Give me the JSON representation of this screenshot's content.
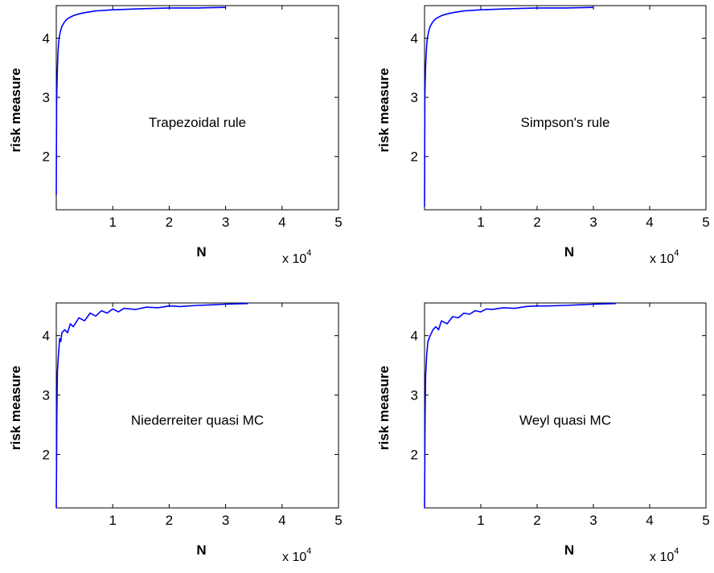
{
  "chart_data": [
    {
      "type": "line",
      "annotation": "Trapezoidal rule",
      "xlabel": "N",
      "ylabel": "risk measure",
      "x_multiplier": "x 10",
      "x_multiplier_exp": "4",
      "xlim": [
        0,
        5
      ],
      "ylim": [
        1.1,
        4.55
      ],
      "xticks": [
        "1",
        "2",
        "3",
        "4",
        "5"
      ],
      "yticks": [
        "2",
        "3",
        "4"
      ],
      "series": [
        {
          "color": "#0000ff",
          "x": [
            0,
            0.005,
            0.01,
            0.02,
            0.03,
            0.04,
            0.05,
            0.07,
            0.1,
            0.15,
            0.2,
            0.3,
            0.4,
            0.5,
            0.7,
            1.0,
            1.3,
            1.6,
            2.0,
            2.5,
            3.0
          ],
          "y": [
            1.35,
            2.9,
            3.1,
            3.5,
            3.75,
            3.9,
            4.0,
            4.1,
            4.2,
            4.28,
            4.33,
            4.38,
            4.41,
            4.43,
            4.46,
            4.48,
            4.49,
            4.5,
            4.51,
            4.51,
            4.52
          ]
        }
      ]
    },
    {
      "type": "line",
      "annotation": "Simpson's rule",
      "xlabel": "N",
      "ylabel": "risk measure",
      "x_multiplier": "x 10",
      "x_multiplier_exp": "4",
      "xlim": [
        0,
        5
      ],
      "ylim": [
        1.1,
        4.55
      ],
      "xticks": [
        "1",
        "2",
        "3",
        "4",
        "5"
      ],
      "yticks": [
        "2",
        "3",
        "4"
      ],
      "series": [
        {
          "color": "#0000ff",
          "x": [
            0,
            0.005,
            0.01,
            0.02,
            0.03,
            0.04,
            0.05,
            0.07,
            0.1,
            0.15,
            0.2,
            0.3,
            0.4,
            0.5,
            0.7,
            1.0,
            1.3,
            1.6,
            2.0,
            2.5,
            3.0
          ],
          "y": [
            1.15,
            2.95,
            3.2,
            3.55,
            3.75,
            3.9,
            4.0,
            4.1,
            4.2,
            4.28,
            4.33,
            4.38,
            4.41,
            4.43,
            4.46,
            4.48,
            4.49,
            4.5,
            4.51,
            4.51,
            4.52
          ]
        }
      ]
    },
    {
      "type": "line",
      "annotation": "Niederreiter quasi MC",
      "xlabel": "N",
      "ylabel": "risk measure",
      "x_multiplier": "x 10",
      "x_multiplier_exp": "4",
      "xlim": [
        0,
        5
      ],
      "ylim": [
        1.1,
        4.55
      ],
      "xticks": [
        "1",
        "2",
        "3",
        "4",
        "5"
      ],
      "yticks": [
        "2",
        "3",
        "4"
      ],
      "series": [
        {
          "color": "#0000ff",
          "x": [
            0,
            0.01,
            0.02,
            0.04,
            0.06,
            0.08,
            0.1,
            0.15,
            0.2,
            0.25,
            0.3,
            0.4,
            0.5,
            0.6,
            0.7,
            0.8,
            0.9,
            1.0,
            1.1,
            1.2,
            1.4,
            1.6,
            1.8,
            2.0,
            2.2,
            2.5,
            2.8,
            3.0,
            3.4
          ],
          "y": [
            1.1,
            2.65,
            3.4,
            3.7,
            3.95,
            3.9,
            4.05,
            4.1,
            4.05,
            4.2,
            4.15,
            4.3,
            4.25,
            4.38,
            4.33,
            4.42,
            4.38,
            4.45,
            4.4,
            4.46,
            4.44,
            4.48,
            4.47,
            4.5,
            4.49,
            4.51,
            4.52,
            4.53,
            4.54
          ]
        }
      ]
    },
    {
      "type": "line",
      "annotation": "Weyl quasi MC",
      "xlabel": "N",
      "ylabel": "risk measure",
      "x_multiplier": "x 10",
      "x_multiplier_exp": "4",
      "xlim": [
        0,
        5
      ],
      "ylim": [
        1.1,
        4.55
      ],
      "xticks": [
        "1",
        "2",
        "3",
        "4",
        "5"
      ],
      "yticks": [
        "2",
        "3",
        "4"
      ],
      "series": [
        {
          "color": "#0000ff",
          "x": [
            0,
            0.01,
            0.02,
            0.04,
            0.06,
            0.08,
            0.1,
            0.15,
            0.2,
            0.25,
            0.3,
            0.4,
            0.5,
            0.6,
            0.7,
            0.8,
            0.9,
            1.0,
            1.1,
            1.2,
            1.4,
            1.6,
            1.8,
            2.0,
            2.2,
            2.5,
            2.8,
            3.0,
            3.4
          ],
          "y": [
            1.1,
            2.65,
            3.35,
            3.7,
            3.9,
            3.95,
            4.0,
            4.1,
            4.15,
            4.1,
            4.25,
            4.2,
            4.32,
            4.3,
            4.38,
            4.36,
            4.42,
            4.4,
            4.45,
            4.44,
            4.47,
            4.46,
            4.49,
            4.5,
            4.5,
            4.51,
            4.52,
            4.53,
            4.54
          ]
        }
      ]
    }
  ]
}
